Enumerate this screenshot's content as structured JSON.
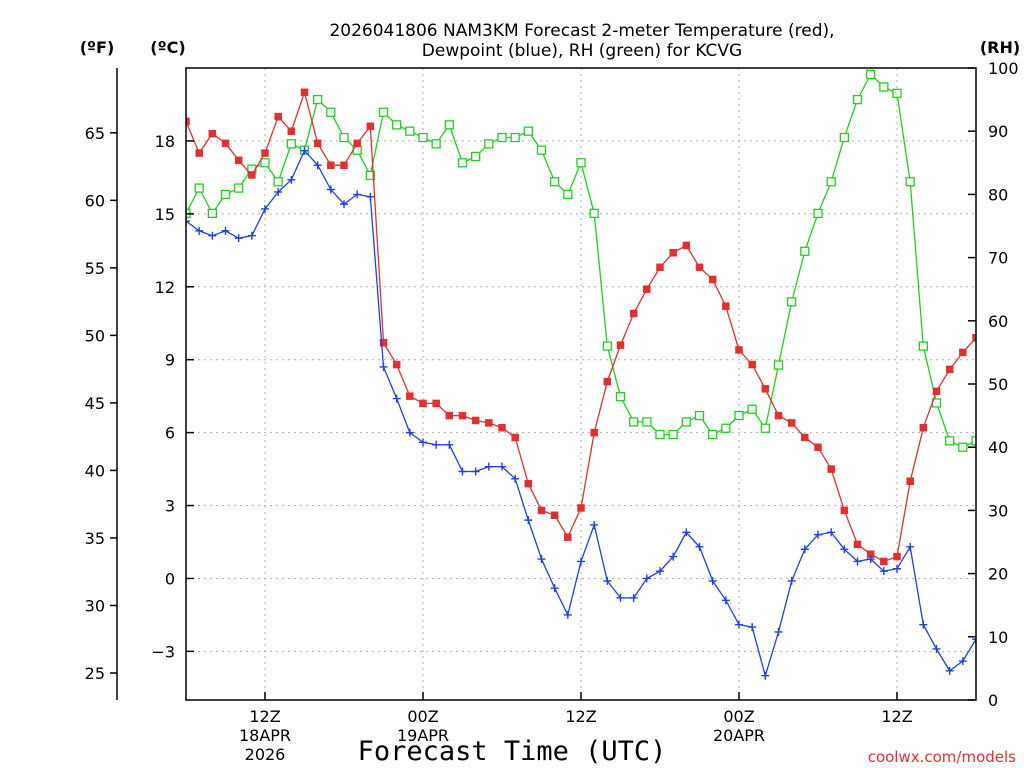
{
  "chart_data": {
    "type": "line",
    "title_line1": "2026041806 NAM3KM Forecast 2-meter Temperature (red),",
    "title_line2": "Dewpoint (blue), RH (green) for KCVG",
    "xlabel": "Forecast Time (UTC)",
    "watermark": "coolwx.com/models",
    "left_axis_f_label": "(ºF)",
    "left_axis_c_label": "(ºC)",
    "right_axis_label": "(RH)",
    "x_start_hour": 6,
    "x_end_hour": 66,
    "x_ticks": [
      {
        "hour": 12,
        "line1": "12Z",
        "line2": "18APR",
        "line3": "2026"
      },
      {
        "hour": 24,
        "line1": "00Z",
        "line2": "19APR",
        "line3": ""
      },
      {
        "hour": 36,
        "line1": "12Z",
        "line2": "",
        "line3": ""
      },
      {
        "hour": 48,
        "line1": "00Z",
        "line2": "20APR",
        "line3": ""
      },
      {
        "hour": 60,
        "line1": "12Z",
        "line2": "",
        "line3": ""
      }
    ],
    "ylim_c": [
      -5,
      21
    ],
    "y_ticks_c": [
      "−3",
      "0",
      "3",
      "6",
      "9",
      "12",
      "15",
      "18"
    ],
    "y_ticks_f": [
      "25",
      "30",
      "35",
      "40",
      "45",
      "50",
      "55",
      "60",
      "65"
    ],
    "ylim_rh": [
      0,
      100
    ],
    "y_ticks_rh": [
      "0",
      "10",
      "20",
      "30",
      "40",
      "50",
      "60",
      "70",
      "80",
      "90",
      "100"
    ],
    "colors": {
      "temperature": "#e03030",
      "dewpoint": "#2040e0",
      "rh": "#20d020",
      "grid": "#b0b0b0",
      "watermark": "#e03030"
    },
    "series": [
      {
        "name": "Temperature (°C)",
        "marker": "square-filled",
        "values": [
          18.8,
          17.5,
          18.3,
          17.9,
          17.2,
          16.6,
          17.5,
          19.0,
          18.4,
          20.0,
          17.9,
          17.0,
          17.0,
          17.9,
          18.6,
          9.7,
          8.8,
          7.5,
          7.2,
          7.2,
          6.7,
          6.7,
          6.5,
          6.4,
          6.2,
          5.8,
          3.9,
          2.8,
          2.6,
          1.7,
          2.9,
          6.0,
          8.1,
          9.6,
          10.9,
          11.9,
          12.8,
          13.4,
          13.7,
          12.8,
          12.3,
          11.2,
          9.4,
          8.8,
          7.8,
          6.7,
          6.4,
          5.8,
          5.4,
          4.5,
          2.8,
          1.4,
          1.0,
          0.7,
          0.9,
          4.0,
          6.2,
          7.7,
          8.6,
          9.3,
          9.9
        ]
      },
      {
        "name": "Dewpoint (°C)",
        "marker": "plus",
        "values": [
          14.7,
          14.3,
          14.1,
          14.3,
          14.0,
          14.1,
          15.2,
          15.9,
          16.4,
          17.6,
          17.0,
          16.0,
          15.4,
          15.8,
          15.7,
          8.7,
          7.4,
          6.0,
          5.6,
          5.5,
          5.5,
          4.4,
          4.4,
          4.6,
          4.6,
          4.1,
          2.4,
          0.8,
          -0.4,
          -1.5,
          0.7,
          2.2,
          -0.1,
          -0.8,
          -0.8,
          0.0,
          0.3,
          0.9,
          1.9,
          1.3,
          -0.1,
          -0.9,
          -1.9,
          -2.0,
          -4.0,
          -2.2,
          -0.1,
          1.2,
          1.8,
          1.9,
          1.2,
          0.7,
          0.8,
          0.3,
          0.4,
          1.3,
          -1.9,
          -2.9,
          -3.8,
          -3.4,
          -2.5
        ]
      },
      {
        "name": "RH (%)",
        "marker": "square-open",
        "values": [
          77,
          81,
          77,
          80,
          81,
          84,
          85,
          82,
          88,
          87,
          95,
          93,
          89,
          87,
          83,
          93,
          91,
          90,
          89,
          88,
          91,
          85,
          86,
          88,
          89,
          89,
          90,
          87,
          82,
          80,
          85,
          77,
          56,
          48,
          44,
          44,
          42,
          42,
          44,
          45,
          42,
          43,
          45,
          46,
          43,
          53,
          63,
          71,
          77,
          82,
          89,
          95,
          99,
          97,
          96,
          82,
          56,
          47,
          41,
          40,
          41
        ]
      }
    ]
  }
}
